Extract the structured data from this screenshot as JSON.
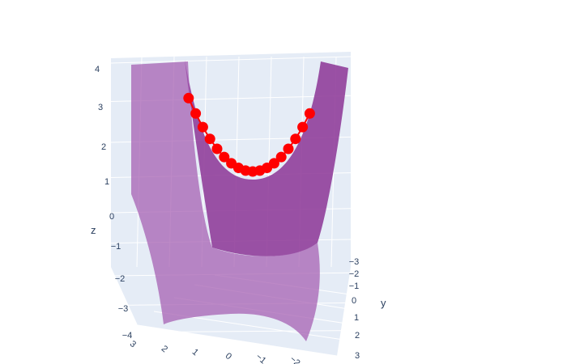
{
  "chart_data": {
    "type": "surface3d",
    "title": "",
    "surface": {
      "function": "z = x^2 - y^2",
      "x_range": [
        -2,
        2
      ],
      "y_range": [
        -2,
        2
      ],
      "color": "#8e3a99",
      "opacity": 0.6
    },
    "scatter": {
      "mode": "lines+markers",
      "marker_color": "#ff0000",
      "line_color": "#ff0000",
      "x": [
        -1.8,
        -1.6,
        -1.4,
        -1.2,
        -1.0,
        -0.8,
        -0.6,
        -0.4,
        -0.2,
        0.0,
        0.2,
        0.4,
        0.6,
        0.8,
        1.0,
        1.2,
        1.4,
        1.6
      ],
      "y": [
        0,
        0,
        0,
        0,
        0,
        0,
        0,
        0,
        0,
        0,
        0,
        0,
        0,
        0,
        0,
        0,
        0,
        0
      ],
      "z": [
        3.24,
        2.56,
        1.96,
        1.44,
        1.0,
        0.64,
        0.36,
        0.16,
        0.04,
        0.0,
        0.04,
        0.16,
        0.36,
        0.64,
        1.0,
        1.44,
        1.96,
        2.56
      ]
    },
    "axes": {
      "x": {
        "title": "",
        "ticks": [
          "3",
          "2",
          "1",
          "0",
          "−1",
          "−2"
        ]
      },
      "y": {
        "title": "y",
        "ticks": [
          "−3",
          "−2",
          "−1",
          "0",
          "1",
          "2",
          "3"
        ]
      },
      "z": {
        "title": "z",
        "ticks": [
          "4",
          "3",
          "2",
          "1",
          "0",
          "−1",
          "−2",
          "−3",
          "−4"
        ]
      }
    },
    "scene_background": "#e5ecf6",
    "grid_color": "#ffffff"
  }
}
